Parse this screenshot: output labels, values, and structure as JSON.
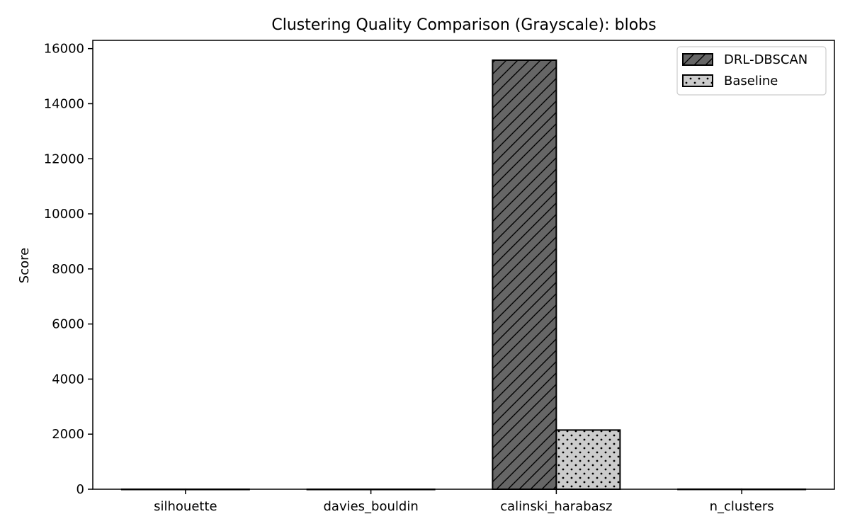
{
  "chart_data": {
    "type": "bar",
    "title": "Clustering Quality Comparison (Grayscale): blobs",
    "xlabel": "",
    "ylabel": "Score",
    "categories": [
      "silhouette",
      "davies_bouldin",
      "calinski_harabasz",
      "n_clusters"
    ],
    "series": [
      {
        "name": "DRL-DBSCAN",
        "values": [
          0.84,
          0.23,
          15580,
          3
        ],
        "color": "#666666",
        "pattern": "diagonal-hatch"
      },
      {
        "name": "Baseline",
        "values": [
          0.71,
          0.42,
          2150,
          2
        ],
        "color": "#cccccc",
        "pattern": "dots"
      }
    ],
    "ylim": [
      0,
      16300
    ],
    "yticks": [
      0,
      2000,
      4000,
      6000,
      8000,
      10000,
      12000,
      14000,
      16000
    ],
    "yticklabels": [
      "0",
      "2000",
      "4000",
      "6000",
      "8000",
      "10000",
      "12000",
      "14000",
      "16000"
    ],
    "grid": false,
    "legend_position": "top-right"
  }
}
